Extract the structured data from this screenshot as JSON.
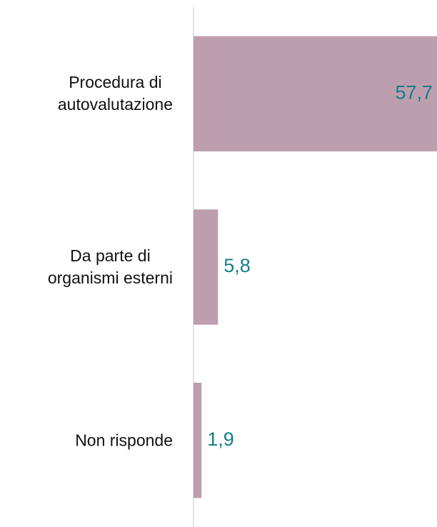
{
  "chart_data": {
    "type": "bar",
    "orientation": "horizontal",
    "categories": [
      "Procedura di\nautovalutazione",
      "Da parte di\norganismi esterni",
      "Non risponde"
    ],
    "values": [
      57.7,
      5.8,
      1.9
    ],
    "value_labels": [
      "57,7",
      "5,8",
      "1,9"
    ],
    "color": "#bc9eae"
  }
}
